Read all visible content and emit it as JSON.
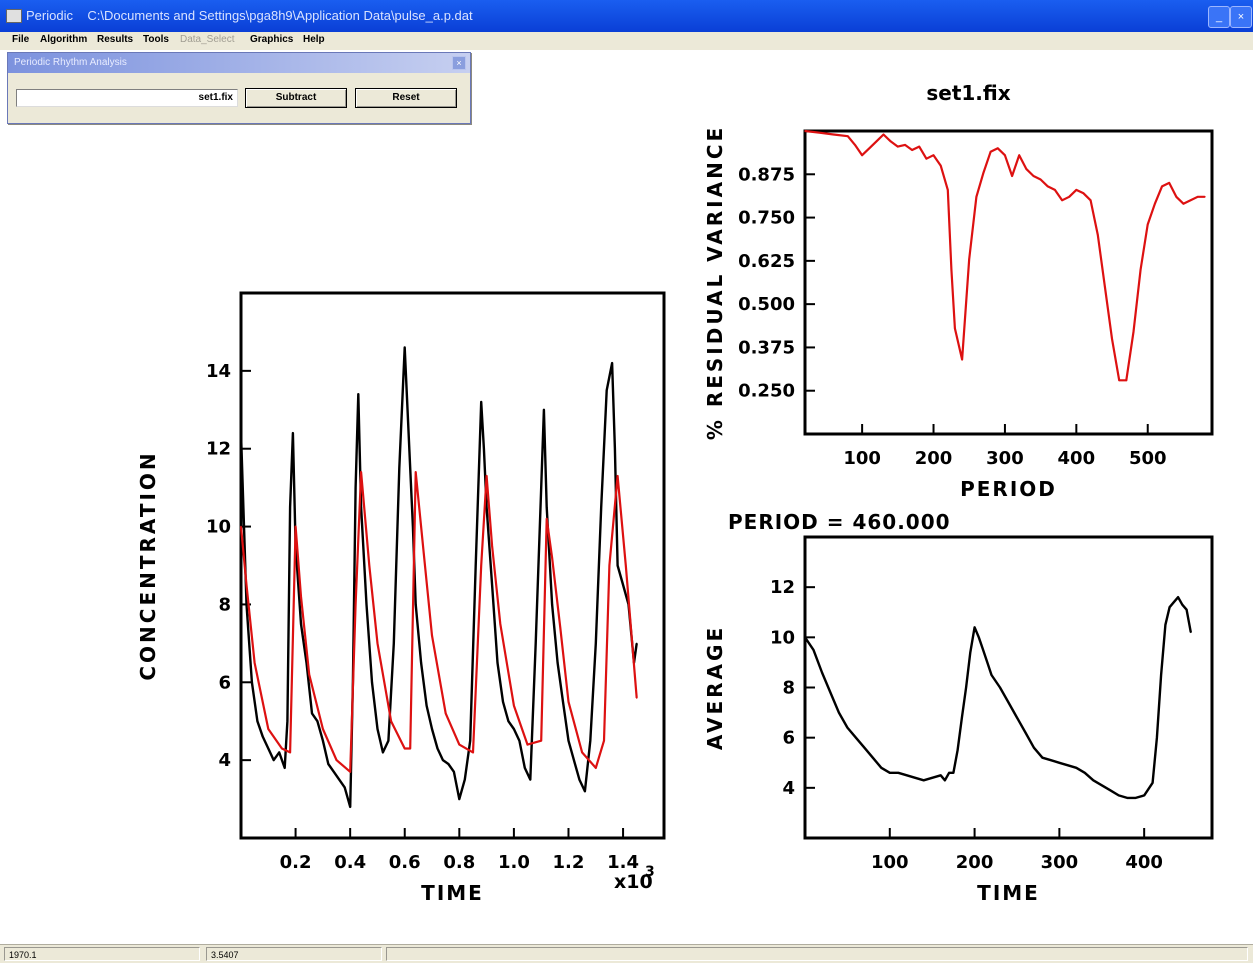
{
  "window": {
    "app_title": "Periodic",
    "file_path": "C:\\Documents and Settings\\pga8h9\\Application Data\\pulse_a.p.dat",
    "minimize_label": "_",
    "close_label": "×"
  },
  "menu": {
    "items": [
      "File",
      "Algorithm",
      "Results",
      "Tools",
      "Data_Select",
      "Graphics",
      "Help"
    ],
    "disabled": [
      "Data_Select"
    ]
  },
  "panel": {
    "title": "Periodic Rhythm Analysis",
    "file_value": "set1.fix",
    "subtract_label": "Subtract",
    "reset_label": "Reset",
    "close_label": "×"
  },
  "status": {
    "cell1": "1970.1",
    "cell2": "3.5407"
  },
  "colors": {
    "fit_line": "#dd1111",
    "data_line": "#000000",
    "titlebar": "#0a3fd6",
    "chrome": "#ece9d8"
  },
  "chart_data": [
    {
      "type": "line",
      "name": "concentration",
      "xlabel": "TIME",
      "ylabel": "CONCENTRATION",
      "x_multiplier_label": "x10",
      "x_multiplier_exp": "3",
      "xlim": [
        0,
        1.55
      ],
      "ylim": [
        2,
        16
      ],
      "xticks": [
        0.2,
        0.4,
        0.6,
        0.8,
        1.0,
        1.2,
        1.4
      ],
      "xtick_labels": [
        "0.2",
        "0.4",
        "0.6",
        "0.8",
        "1.0",
        "1.2",
        "1.4"
      ],
      "yticks": [
        4,
        6,
        8,
        10,
        12,
        14
      ],
      "series": [
        {
          "color": "black",
          "x": [
            0.0,
            0.02,
            0.04,
            0.06,
            0.08,
            0.1,
            0.12,
            0.14,
            0.16,
            0.17,
            0.18,
            0.19,
            0.2,
            0.22,
            0.24,
            0.26,
            0.28,
            0.3,
            0.32,
            0.34,
            0.36,
            0.38,
            0.4,
            0.41,
            0.42,
            0.43,
            0.44,
            0.46,
            0.48,
            0.5,
            0.52,
            0.54,
            0.56,
            0.58,
            0.6,
            0.62,
            0.63,
            0.64,
            0.66,
            0.68,
            0.7,
            0.72,
            0.74,
            0.76,
            0.78,
            0.8,
            0.82,
            0.84,
            0.86,
            0.88,
            0.89,
            0.9,
            0.92,
            0.94,
            0.96,
            0.98,
            1.0,
            1.02,
            1.04,
            1.06,
            1.08,
            1.1,
            1.11,
            1.12,
            1.14,
            1.16,
            1.18,
            1.2,
            1.22,
            1.24,
            1.26,
            1.28,
            1.3,
            1.32,
            1.34,
            1.36,
            1.37,
            1.38,
            1.4,
            1.42,
            1.44,
            1.45
          ],
          "y": [
            12.4,
            8.0,
            6.0,
            5.0,
            4.6,
            4.3,
            4.0,
            4.2,
            3.8,
            5.0,
            10.5,
            12.4,
            9.5,
            7.5,
            6.5,
            5.2,
            5.0,
            4.5,
            3.9,
            3.7,
            3.5,
            3.3,
            2.8,
            6.0,
            11.0,
            13.4,
            10.5,
            8.0,
            6.0,
            4.8,
            4.2,
            4.5,
            7.0,
            11.5,
            14.6,
            11.5,
            10.0,
            8.0,
            6.5,
            5.4,
            4.8,
            4.3,
            4.0,
            3.9,
            3.7,
            3.0,
            3.5,
            4.5,
            9.0,
            13.2,
            12.0,
            10.5,
            8.5,
            6.5,
            5.5,
            5.0,
            4.8,
            4.5,
            3.8,
            3.5,
            7.0,
            11.0,
            13.0,
            10.5,
            8.0,
            6.5,
            5.5,
            4.5,
            4.0,
            3.5,
            3.2,
            4.5,
            7.0,
            10.5,
            13.5,
            14.2,
            12.0,
            9.0,
            8.5,
            8.0,
            6.5,
            7.0
          ]
        },
        {
          "color": "red",
          "x": [
            0.0,
            0.02,
            0.05,
            0.1,
            0.15,
            0.18,
            0.2,
            0.22,
            0.25,
            0.3,
            0.35,
            0.4,
            0.42,
            0.44,
            0.47,
            0.5,
            0.55,
            0.6,
            0.62,
            0.64,
            0.67,
            0.7,
            0.75,
            0.8,
            0.85,
            0.88,
            0.9,
            0.92,
            0.95,
            1.0,
            1.05,
            1.1,
            1.12,
            1.14,
            1.17,
            1.2,
            1.25,
            1.3,
            1.33,
            1.35,
            1.38,
            1.41,
            1.45
          ],
          "y": [
            10.0,
            8.5,
            6.5,
            4.8,
            4.3,
            4.2,
            10.0,
            8.2,
            6.2,
            4.8,
            4.0,
            3.7,
            8.0,
            11.4,
            9.0,
            7.0,
            5.0,
            4.3,
            4.3,
            11.4,
            9.3,
            7.2,
            5.2,
            4.4,
            4.2,
            9.0,
            11.3,
            9.5,
            7.5,
            5.4,
            4.4,
            4.5,
            10.2,
            9.2,
            7.4,
            5.5,
            4.2,
            3.8,
            4.5,
            9.0,
            11.3,
            9.0,
            5.6
          ]
        }
      ]
    },
    {
      "type": "line",
      "name": "residual_variance",
      "title": "set1.fix",
      "xlabel": "PERIOD",
      "ylabel": "% RESIDUAL VARIANCE",
      "xlim": [
        20,
        590
      ],
      "ylim": [
        0.125,
        1.0
      ],
      "xticks": [
        100,
        200,
        300,
        400,
        500
      ],
      "yticks": [
        0.25,
        0.375,
        0.5,
        0.625,
        0.75,
        0.875
      ],
      "ytick_labels": [
        "0.250",
        "0.375",
        "0.500",
        "0.625",
        "0.750",
        "0.875"
      ],
      "series": [
        {
          "color": "red",
          "x": [
            20,
            40,
            60,
            80,
            90,
            100,
            110,
            120,
            130,
            140,
            150,
            160,
            170,
            180,
            190,
            200,
            210,
            220,
            225,
            230,
            240,
            250,
            260,
            270,
            280,
            290,
            300,
            310,
            320,
            330,
            340,
            350,
            360,
            370,
            380,
            390,
            400,
            410,
            420,
            430,
            440,
            450,
            460,
            470,
            480,
            490,
            500,
            510,
            520,
            530,
            540,
            550,
            560,
            570,
            580
          ],
          "y": [
            1.0,
            0.995,
            0.99,
            0.985,
            0.96,
            0.93,
            0.95,
            0.97,
            0.99,
            0.97,
            0.955,
            0.96,
            0.945,
            0.955,
            0.92,
            0.93,
            0.9,
            0.83,
            0.6,
            0.43,
            0.34,
            0.63,
            0.81,
            0.88,
            0.94,
            0.95,
            0.93,
            0.87,
            0.93,
            0.89,
            0.87,
            0.86,
            0.84,
            0.83,
            0.8,
            0.81,
            0.83,
            0.82,
            0.8,
            0.7,
            0.55,
            0.4,
            0.28,
            0.28,
            0.42,
            0.6,
            0.73,
            0.79,
            0.84,
            0.85,
            0.81,
            0.79,
            0.8,
            0.81,
            0.81
          ]
        }
      ]
    },
    {
      "type": "line",
      "name": "average",
      "title": "PERIOD  = 460.000",
      "xlabel": "TIME",
      "ylabel": "AVERAGE",
      "xlim": [
        0,
        480
      ],
      "ylim": [
        2,
        14
      ],
      "xticks": [
        100,
        200,
        300,
        400
      ],
      "yticks": [
        4,
        6,
        8,
        10,
        12
      ],
      "series": [
        {
          "color": "black",
          "x": [
            0,
            10,
            20,
            30,
            40,
            50,
            60,
            70,
            80,
            90,
            100,
            110,
            120,
            130,
            140,
            150,
            160,
            165,
            170,
            175,
            180,
            185,
            190,
            195,
            200,
            205,
            210,
            215,
            220,
            230,
            240,
            250,
            260,
            270,
            280,
            290,
            300,
            310,
            320,
            330,
            340,
            350,
            360,
            370,
            380,
            390,
            400,
            410,
            415,
            420,
            425,
            430,
            435,
            440,
            445,
            450,
            455
          ],
          "y": [
            10.0,
            9.5,
            8.6,
            7.8,
            7.0,
            6.4,
            6.0,
            5.6,
            5.2,
            4.8,
            4.6,
            4.6,
            4.5,
            4.4,
            4.3,
            4.4,
            4.5,
            4.3,
            4.6,
            4.6,
            5.5,
            6.8,
            8.0,
            9.4,
            10.4,
            10.0,
            9.5,
            9.0,
            8.5,
            8.0,
            7.4,
            6.8,
            6.2,
            5.6,
            5.2,
            5.1,
            5.0,
            4.9,
            4.8,
            4.6,
            4.3,
            4.1,
            3.9,
            3.7,
            3.6,
            3.6,
            3.7,
            4.2,
            6.0,
            8.5,
            10.5,
            11.2,
            11.4,
            11.6,
            11.3,
            11.1,
            10.2
          ]
        }
      ]
    }
  ]
}
